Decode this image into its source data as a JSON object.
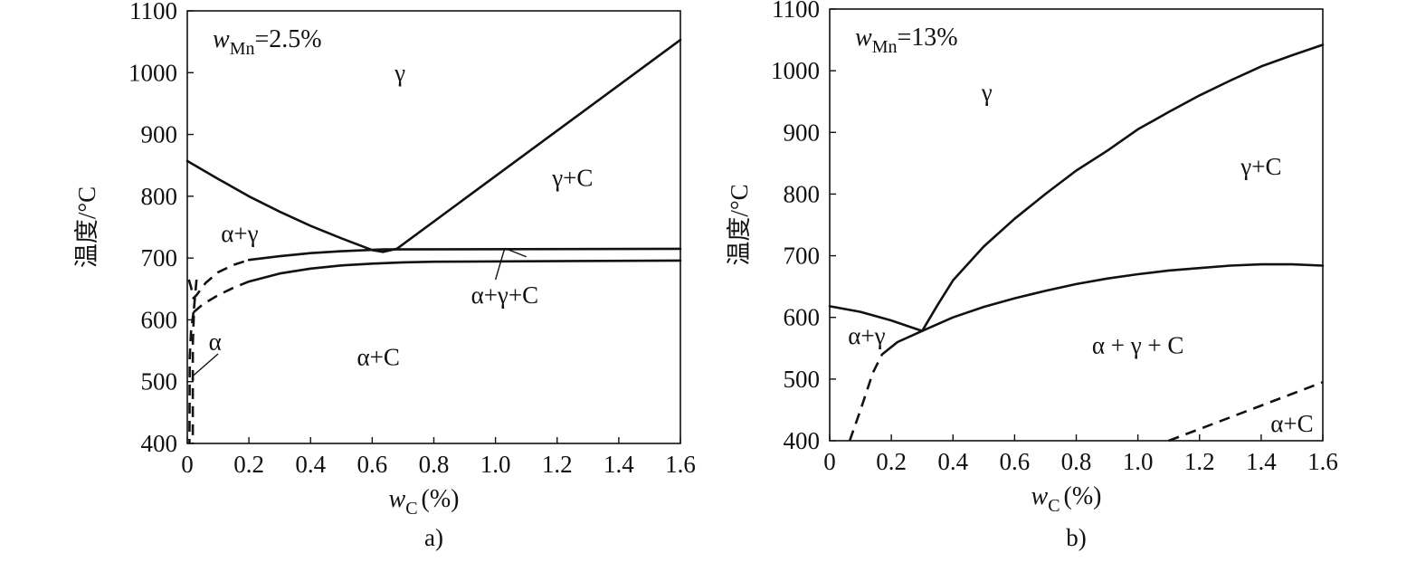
{
  "chart_data": [
    {
      "type": "line",
      "panel_label": "a)",
      "annotation": {
        "symbol": "w",
        "subscript": "Mn",
        "value": "=2.5%"
      },
      "xlabel": {
        "symbol": "w",
        "subscript": "C",
        "unit": "(%)"
      },
      "ylabel": "温度/°C",
      "xlim": [
        0,
        1.6
      ],
      "ylim": [
        400,
        1100
      ],
      "xticks": [
        "0",
        "0.2",
        "0.4",
        "0.6",
        "0.8",
        "1.0",
        "1.2",
        "1.4",
        "1.6"
      ],
      "yticks": [
        "400",
        "500",
        "600",
        "700",
        "800",
        "900",
        "1000",
        "1100"
      ],
      "grid": false,
      "series": [
        {
          "style": "solid",
          "points": [
            [
              0,
              857
            ],
            [
              0.1,
              828
            ],
            [
              0.2,
              800
            ],
            [
              0.3,
              775
            ],
            [
              0.4,
              752
            ],
            [
              0.5,
              732
            ],
            [
              0.6,
              713
            ],
            [
              0.635,
              710
            ]
          ]
        },
        {
          "style": "solid",
          "points": [
            [
              0.635,
              710
            ],
            [
              0.68,
              715
            ],
            [
              1.6,
              1053
            ]
          ]
        },
        {
          "style": "solid",
          "points": [
            [
              0.2,
              697
            ],
            [
              0.3,
              703
            ],
            [
              0.4,
              708
            ],
            [
              0.5,
              711
            ],
            [
              0.635,
              714
            ],
            [
              1.6,
              715
            ]
          ]
        },
        {
          "style": "solid",
          "points": [
            [
              0.2,
              662
            ],
            [
              0.3,
              675
            ],
            [
              0.4,
              683
            ],
            [
              0.5,
              688
            ],
            [
              0.6,
              691
            ],
            [
              0.7,
              693
            ],
            [
              0.8,
              694
            ],
            [
              1.6,
              696
            ]
          ]
        },
        {
          "style": "dashed",
          "points": [
            [
              0.005,
              665
            ],
            [
              0.012,
              653
            ],
            [
              0.02,
              635
            ],
            [
              0.03,
              640
            ],
            [
              0.06,
              660
            ],
            [
              0.1,
              677
            ],
            [
              0.15,
              689
            ],
            [
              0.2,
              697
            ]
          ]
        },
        {
          "style": "dashed",
          "points": [
            [
              0.02,
              612
            ],
            [
              0.05,
              625
            ],
            [
              0.1,
              640
            ],
            [
              0.15,
              652
            ],
            [
              0.2,
              662
            ]
          ]
        },
        {
          "style": "dashed",
          "points": [
            [
              0.03,
              665
            ],
            [
              0.022,
              620
            ],
            [
              0.018,
              560
            ],
            [
              0.018,
              400
            ]
          ]
        },
        {
          "style": "dashed",
          "points": [
            [
              0.02,
              612
            ],
            [
              0.012,
              580
            ],
            [
              0.008,
              540
            ],
            [
              0.007,
              400
            ]
          ]
        }
      ],
      "leader_lines": [
        {
          "from": [
            0.02,
            510
          ],
          "to": [
            0.1,
            545
          ]
        },
        {
          "from": [
            1.03,
            716
          ],
          "to": [
            1.1,
            702
          ]
        },
        {
          "from": [
            1.03,
            716
          ],
          "to": [
            1.0,
            665
          ]
        }
      ],
      "region_labels": [
        {
          "text": "γ",
          "x": 0.69,
          "y": 1000
        },
        {
          "text": "γ+C",
          "x": 1.25,
          "y": 830
        },
        {
          "text": "α+γ",
          "x": 0.17,
          "y": 740
        },
        {
          "text": "α+γ+C",
          "x": 1.03,
          "y": 640
        },
        {
          "text": "α",
          "x": 0.09,
          "y": 565
        },
        {
          "text": "α+C",
          "x": 0.62,
          "y": 540
        }
      ]
    },
    {
      "type": "line",
      "panel_label": "b)",
      "annotation": {
        "symbol": "w",
        "subscript": "Mn",
        "value": "=13%"
      },
      "xlabel": {
        "symbol": "w",
        "subscript": "C",
        "unit": "(%)"
      },
      "ylabel": "温度/°C",
      "xlim": [
        0,
        1.6
      ],
      "ylim": [
        400,
        1100
      ],
      "xticks": [
        "0",
        "0.2",
        "0.4",
        "0.6",
        "0.8",
        "1.0",
        "1.2",
        "1.4",
        "1.6"
      ],
      "yticks": [
        "400",
        "500",
        "600",
        "700",
        "800",
        "900",
        "1000",
        "1100"
      ],
      "grid": false,
      "series": [
        {
          "style": "solid",
          "points": [
            [
              0,
              618
            ],
            [
              0.1,
              609
            ],
            [
              0.2,
              595
            ],
            [
              0.3,
              578
            ]
          ]
        },
        {
          "style": "solid",
          "points": [
            [
              0.3,
              578
            ],
            [
              0.35,
              620
            ],
            [
              0.4,
              660
            ],
            [
              0.5,
              715
            ],
            [
              0.6,
              760
            ],
            [
              0.7,
              800
            ],
            [
              0.8,
              838
            ],
            [
              0.9,
              870
            ],
            [
              1.0,
              905
            ],
            [
              1.1,
              933
            ],
            [
              1.2,
              960
            ],
            [
              1.3,
              984
            ],
            [
              1.4,
              1007
            ],
            [
              1.5,
              1025
            ],
            [
              1.6,
              1042
            ]
          ]
        },
        {
          "style": "solid",
          "points": [
            [
              0.17,
              540
            ],
            [
              0.22,
              560
            ],
            [
              0.3,
              578
            ],
            [
              0.4,
              600
            ],
            [
              0.5,
              617
            ],
            [
              0.6,
              631
            ],
            [
              0.7,
              643
            ],
            [
              0.8,
              654
            ],
            [
              0.9,
              663
            ],
            [
              1.0,
              670
            ],
            [
              1.1,
              676
            ],
            [
              1.2,
              680
            ],
            [
              1.3,
              684
            ],
            [
              1.4,
              686
            ],
            [
              1.5,
              686
            ],
            [
              1.6,
              684
            ]
          ]
        },
        {
          "style": "dashed",
          "points": [
            [
              0.065,
              400
            ],
            [
              0.1,
              450
            ],
            [
              0.14,
              510
            ],
            [
              0.17,
              540
            ]
          ]
        },
        {
          "style": "dashed",
          "points": [
            [
              1.1,
              400
            ],
            [
              1.6,
              495
            ]
          ]
        }
      ],
      "leader_lines": [],
      "region_labels": [
        {
          "text": "γ",
          "x": 0.51,
          "y": 965
        },
        {
          "text": "γ+C",
          "x": 1.4,
          "y": 845
        },
        {
          "text": "α+γ",
          "x": 0.12,
          "y": 570
        },
        {
          "text": "α + γ + C",
          "x": 1.0,
          "y": 555
        },
        {
          "text": "α+C",
          "x": 1.5,
          "y": 428
        }
      ]
    }
  ]
}
